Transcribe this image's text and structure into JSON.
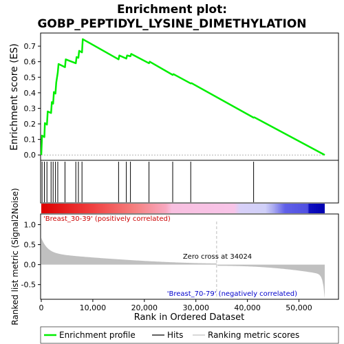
{
  "title_line1": "Enrichment plot:",
  "title_line2": "GOBP_PEPTIDYL_LYSINE_DIMETHYLATION",
  "colors": {
    "es_line": "#00ee00",
    "hits": "#000000",
    "metric_fill": "#c0c0c0",
    "positive_label": "#cc0000",
    "negative_label": "#0000cc"
  },
  "chart_data": {
    "type": "line",
    "xlabel": "Rank in Ordered Dataset",
    "ylabel_top": "Enrichment score (ES)",
    "ylabel_bottom": "Ranked list metric (Signal2Noise)",
    "x_ticks": [
      "0",
      "10,000",
      "20,000",
      "30,000",
      "40,000",
      "50,000"
    ],
    "x_tick_values": [
      0,
      10000,
      20000,
      30000,
      40000,
      50000
    ],
    "xlim": [
      0,
      55000
    ],
    "es_yticks": [
      "0.0",
      "0.1",
      "0.2",
      "0.3",
      "0.4",
      "0.5",
      "0.6",
      "0.7"
    ],
    "es_ytick_values": [
      0,
      0.1,
      0.2,
      0.3,
      0.4,
      0.5,
      0.6,
      0.7
    ],
    "es_ylim": [
      -0.03,
      0.78
    ],
    "metric_yticks": [
      "-0.5",
      "0.0",
      "0.5",
      "1.0"
    ],
    "metric_ytick_values": [
      -0.5,
      0,
      0.5,
      1.0
    ],
    "metric_ylim": [
      -0.85,
      1.25
    ],
    "es_curve": {
      "x": [
        0,
        150,
        600,
        700,
        1100,
        1250,
        1900,
        2050,
        2300,
        2450,
        2750,
        2900,
        3200,
        3350,
        4600,
        4750,
        6700,
        6850,
        7200,
        7350,
        7900,
        8050,
        15000,
        15150,
        16500,
        16650,
        17300,
        17450,
        20900,
        21050,
        25500,
        25650,
        29000,
        29150,
        41200,
        41350,
        55000
      ],
      "y": [
        0,
        0.125,
        0.115,
        0.205,
        0.195,
        0.28,
        0.27,
        0.34,
        0.33,
        0.405,
        0.395,
        0.465,
        0.53,
        0.585,
        0.565,
        0.615,
        0.59,
        0.63,
        0.625,
        0.67,
        0.66,
        0.745,
        0.615,
        0.64,
        0.62,
        0.64,
        0.635,
        0.65,
        0.59,
        0.6,
        0.515,
        0.52,
        0.46,
        0.462,
        0.24,
        0.242,
        0
      ]
    },
    "hits": [
      150,
      600,
      1100,
      1900,
      2300,
      2750,
      3200,
      4600,
      6700,
      7200,
      7900,
      15000,
      16500,
      17300,
      20900,
      25500,
      29000,
      41200
    ],
    "zero_cross": 34024,
    "zero_cross_label": "Zero cross at 34024",
    "positive_label": "'Breast_30-39' (positively correlated)",
    "negative_label": "'Breast_70-79' (negatively correlated)",
    "legend": [
      {
        "label": "Enrichment profile",
        "kind": "line",
        "color": "#00ee00"
      },
      {
        "label": "Hits",
        "kind": "line",
        "color": "#000000"
      },
      {
        "label": "Ranking metric scores",
        "kind": "line",
        "color": "#c0c0c0"
      }
    ]
  }
}
